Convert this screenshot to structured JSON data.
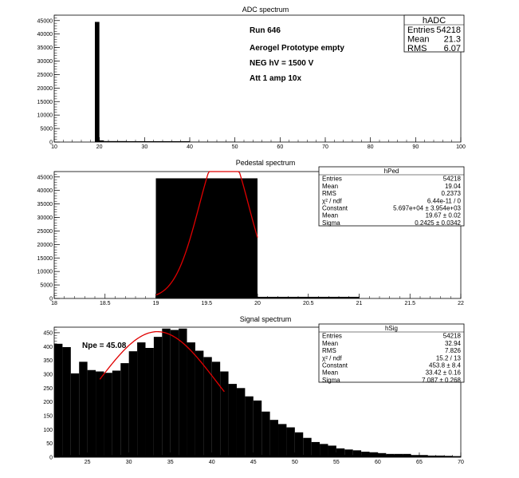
{
  "colors": {
    "fill": "#000000",
    "fit": "#e00000",
    "box": "#ffffff"
  },
  "chart_data": [
    {
      "id": "adc",
      "type": "bar",
      "title": "ADC spectrum",
      "xlim": [
        10,
        100
      ],
      "ylim": [
        0,
        47000
      ],
      "xticks": [
        10,
        20,
        30,
        40,
        50,
        60,
        70,
        80,
        90,
        100
      ],
      "yticks": [
        0,
        5000,
        10000,
        15000,
        20000,
        25000,
        30000,
        35000,
        40000,
        45000
      ],
      "bins": [
        {
          "x0": 19,
          "x1": 20,
          "y": 44500
        },
        {
          "x0": 20,
          "x1": 21,
          "y": 600
        },
        {
          "x0": 21,
          "x1": 26,
          "y": 350
        },
        {
          "x0": 26,
          "x1": 32,
          "y": 300
        },
        {
          "x0": 32,
          "x1": 40,
          "y": 300
        },
        {
          "x0": 40,
          "x1": 50,
          "y": 150
        },
        {
          "x0": 50,
          "x1": 60,
          "y": 60
        }
      ],
      "stats_box": {
        "name": "hADC",
        "rows": [
          {
            "label": "Entries",
            "value": "54218"
          },
          {
            "label": "Mean",
            "value": "21.3"
          },
          {
            "label": "RMS",
            "value": "6.07"
          }
        ]
      },
      "annotations": [
        "Run  646",
        "Aerogel Prototype empty",
        "NEG hV = 1500 V",
        "Att 1 amp 10x"
      ]
    },
    {
      "id": "ped",
      "type": "bar",
      "title": "Pedestal spectrum",
      "xlim": [
        18,
        22
      ],
      "ylim": [
        0,
        47000
      ],
      "xticks": [
        18,
        18.5,
        19,
        19.5,
        20,
        20.5,
        21,
        21.5,
        22
      ],
      "yticks": [
        0,
        5000,
        10000,
        15000,
        20000,
        25000,
        30000,
        35000,
        40000,
        45000
      ],
      "bins": [
        {
          "x0": 19,
          "x1": 20,
          "y": 44500
        },
        {
          "x0": 20,
          "x1": 21,
          "y": 600
        }
      ],
      "fit": {
        "constant": 56970,
        "mean": 19.67,
        "sigma": 0.2425,
        "xmin": 19.0,
        "xmax": 20.0
      },
      "stats_box": {
        "name": "hPed",
        "rows": [
          {
            "label": "Entries",
            "value": "54218"
          },
          {
            "label": "Mean",
            "value": "19.04"
          },
          {
            "label": "RMS",
            "value": "0.2373"
          },
          {
            "label": "χ² / ndf",
            "value": "6.44e-11 / 0"
          },
          {
            "label": "Constant",
            "value": "5.697e+04 ± 3.954e+03"
          },
          {
            "label": "Mean",
            "value": "19.67 ± 0.02"
          },
          {
            "label": "Sigma",
            "value": "0.2425 ± 0.0342"
          }
        ]
      }
    },
    {
      "id": "sig",
      "type": "bar",
      "title": "Signal spectrum",
      "xlim": [
        21,
        70
      ],
      "ylim": [
        0,
        470
      ],
      "xticks": [
        25,
        30,
        35,
        40,
        45,
        50,
        55,
        60,
        65,
        70
      ],
      "yticks": [
        0,
        50,
        100,
        150,
        200,
        250,
        300,
        350,
        400,
        450
      ],
      "x_start": 21,
      "bin_width": 1,
      "values": [
        410,
        398,
        303,
        345,
        315,
        310,
        305,
        313,
        340,
        383,
        415,
        395,
        435,
        465,
        460,
        465,
        415,
        385,
        362,
        345,
        310,
        265,
        250,
        220,
        205,
        165,
        135,
        120,
        108,
        90,
        70,
        55,
        48,
        42,
        32,
        28,
        25,
        20,
        18,
        15,
        12,
        12,
        12,
        8,
        8,
        6,
        6,
        5,
        4
      ],
      "fit": {
        "constant": 453.8,
        "mean": 33.42,
        "sigma": 7.087,
        "xmin": 26.5,
        "xmax": 41.5
      },
      "stats_box": {
        "name": "hSig",
        "rows": [
          {
            "label": "Entries",
            "value": "54218"
          },
          {
            "label": "Mean",
            "value": "32.94"
          },
          {
            "label": "RMS",
            "value": "7.826"
          },
          {
            "label": "χ² / ndf",
            "value": "15.2 / 13"
          },
          {
            "label": "Constant",
            "value": "453.8 ± 8.4"
          },
          {
            "label": "Mean",
            "value": "33.42 ± 0.16"
          },
          {
            "label": "Sigma",
            "value": "7.087 ± 0.268"
          }
        ]
      },
      "annotations": [
        "Npe = 45.08"
      ]
    }
  ]
}
